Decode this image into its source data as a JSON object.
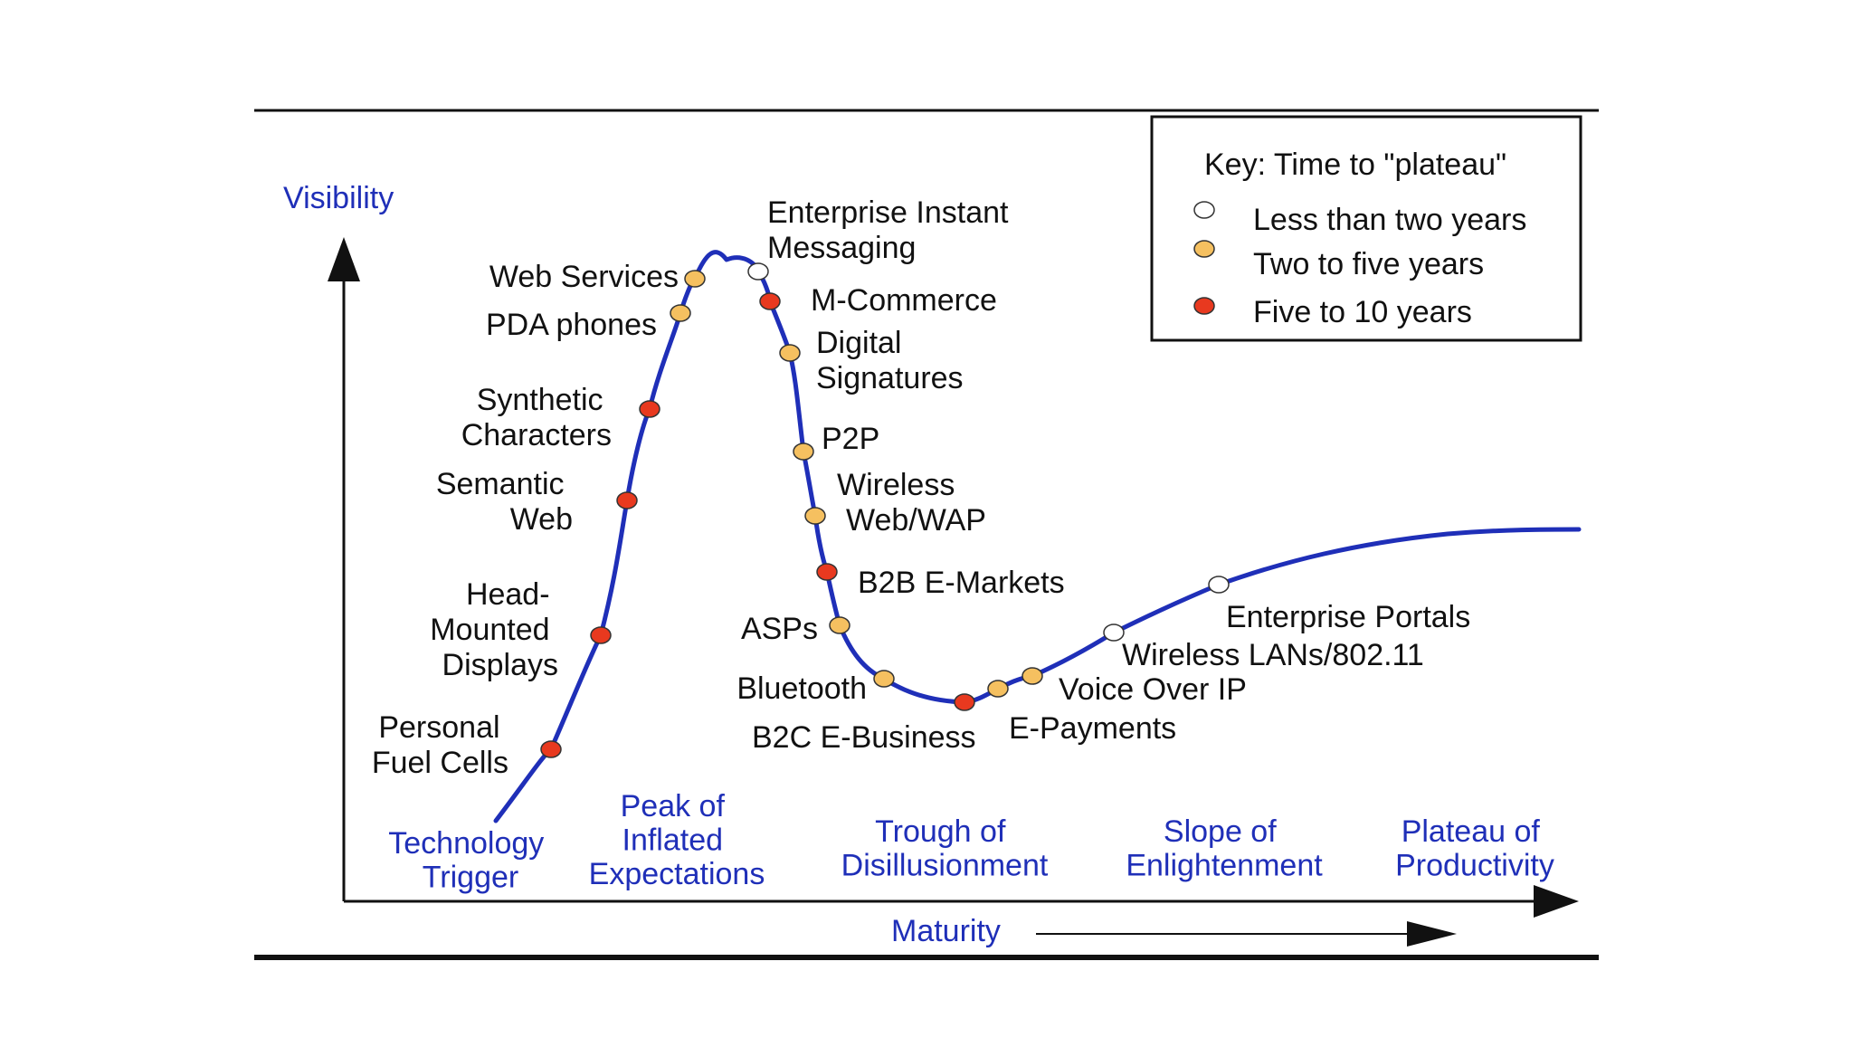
{
  "axes": {
    "y_label": "Visibility",
    "x_label": "Maturity"
  },
  "phases": [
    {
      "lines": [
        "Technology",
        "Trigger"
      ]
    },
    {
      "lines": [
        "Peak of",
        "Inflated",
        "Expectations"
      ]
    },
    {
      "lines": [
        "Trough of",
        "Disillusionment"
      ]
    },
    {
      "lines": [
        "Slope of",
        "Enlightenment"
      ]
    },
    {
      "lines": [
        "Plateau of",
        "Productivity"
      ]
    }
  ],
  "key": {
    "title": "Key: Time to \"plateau\"",
    "items": [
      {
        "category": "lt2",
        "label": "Less than two years"
      },
      {
        "category": "2to5",
        "label": "Two to five years"
      },
      {
        "category": "5to10",
        "label": "Five to 10 years"
      }
    ]
  },
  "colors": {
    "curve": "#1f2fb8",
    "phase_text": "#1f2fb8",
    "lt2": "#ffffff",
    "2to5": "#f5c060",
    "5to10": "#e8391f"
  },
  "technologies": [
    {
      "id": "personal-fuel-cells",
      "lines": [
        "Personal",
        "Fuel Cells"
      ],
      "category": "5to10"
    },
    {
      "id": "head-mounted-displays",
      "lines": [
        "Head-",
        "Mounted",
        "Displays"
      ],
      "category": "5to10"
    },
    {
      "id": "semantic-web",
      "lines": [
        "Semantic",
        "Web"
      ],
      "category": "5to10"
    },
    {
      "id": "synthetic-characters",
      "lines": [
        "Synthetic",
        "Characters"
      ],
      "category": "5to10"
    },
    {
      "id": "pda-phones",
      "lines": [
        "PDA phones"
      ],
      "category": "2to5"
    },
    {
      "id": "web-services",
      "lines": [
        "Web Services"
      ],
      "category": "2to5"
    },
    {
      "id": "enterprise-instant-messaging",
      "lines": [
        "Enterprise Instant",
        "Messaging"
      ],
      "category": "lt2"
    },
    {
      "id": "m-commerce",
      "lines": [
        "M-Commerce"
      ],
      "category": "5to10"
    },
    {
      "id": "digital-signatures",
      "lines": [
        "Digital",
        "Signatures"
      ],
      "category": "2to5"
    },
    {
      "id": "p2p",
      "lines": [
        "P2P"
      ],
      "category": "2to5"
    },
    {
      "id": "wireless-web-wap",
      "lines": [
        "Wireless",
        "Web/WAP"
      ],
      "category": "2to5"
    },
    {
      "id": "b2b-e-markets",
      "lines": [
        "B2B E-Markets"
      ],
      "category": "5to10"
    },
    {
      "id": "asps",
      "lines": [
        "ASPs"
      ],
      "category": "2to5"
    },
    {
      "id": "bluetooth",
      "lines": [
        "Bluetooth"
      ],
      "category": "2to5"
    },
    {
      "id": "b2c-e-business",
      "lines": [
        "B2C E-Business"
      ],
      "category": "5to10"
    },
    {
      "id": "e-payments",
      "lines": [
        "E-Payments"
      ],
      "category": "2to5"
    },
    {
      "id": "voice-over-ip",
      "lines": [
        "Voice Over IP"
      ],
      "category": "2to5"
    },
    {
      "id": "wireless-lans",
      "lines": [
        "Wireless LANs/802.11"
      ],
      "category": "lt2"
    },
    {
      "id": "enterprise-portals",
      "lines": [
        "Enterprise Portals"
      ],
      "category": "lt2"
    }
  ]
}
